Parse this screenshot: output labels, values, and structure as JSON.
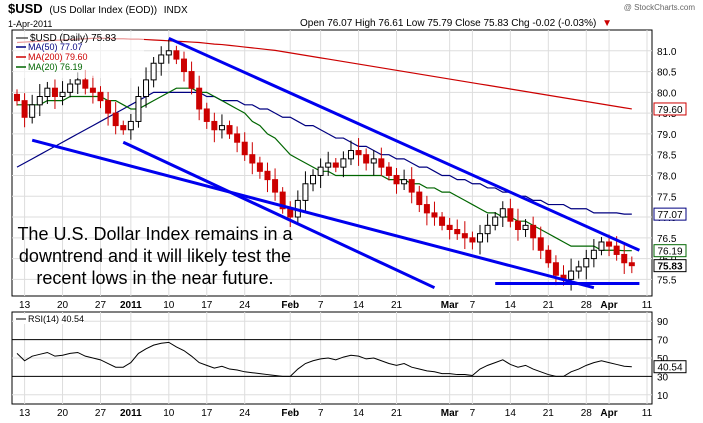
{
  "header": {
    "symbol": "$USD",
    "name": "(US Dollar Index (EOD))",
    "exchange": "INDX",
    "date": "1-Apr-2011",
    "watermark": "@ StockCharts.com",
    "quote": "Open 76.07  High 76.61  Low 75.79  Close 75.83  Chg -0.02 (-0.03%)",
    "quote_arrow": "▼"
  },
  "legend": {
    "main": "$USD (Daily) 75.83",
    "ma50": "MA(50) 77.07",
    "ma200": "MA(200) 79.60",
    "ma20": "MA(20) 76.19"
  },
  "annotation": [
    "The U.S. Dollar Index remains in a",
    "downtrend and it will likely test the",
    "recent lows in the near future."
  ],
  "rsi_label": "RSI(14) 40.54",
  "price_badges": [
    {
      "text": "79.60",
      "value": 79.6,
      "border": "#cc0000"
    },
    {
      "text": "77.07",
      "value": 77.07,
      "border": "#000080"
    },
    {
      "text": "76.19",
      "value": 76.19,
      "border": "#006600"
    },
    {
      "text": "75.83",
      "value": 75.83,
      "border": "#000000",
      "bold": true
    }
  ],
  "rsi_badge": {
    "text": "40.54",
    "value": 40.54
  },
  "colors": {
    "up": "#000000",
    "down": "#cc0000",
    "ma50": "#000080",
    "ma200": "#cc0000",
    "ma20": "#006600",
    "trendline": "#0000ee",
    "rsi": "#000000"
  },
  "chart_data": [
    {
      "type": "candlestick",
      "title": "$USD (Daily) 75.83",
      "ylim": [
        75.1,
        81.5
      ],
      "yticks": [
        75.5,
        76.0,
        76.5,
        77.0,
        77.5,
        78.0,
        78.5,
        79.0,
        79.5,
        80.0,
        80.5,
        81.0
      ],
      "ytick_labels": [
        "75.5",
        "76.0",
        "76.5",
        "77.0",
        "77.5",
        "78.0",
        "78.5",
        "79.0",
        "79.5",
        "80.0",
        "80.5",
        "81.0"
      ],
      "xlim": [
        0,
        83
      ],
      "xticks": [
        {
          "i": 1,
          "label": "13"
        },
        {
          "i": 6,
          "label": "20"
        },
        {
          "i": 11,
          "label": "27"
        },
        {
          "i": 15,
          "label": "2011"
        },
        {
          "i": 20,
          "label": "10"
        },
        {
          "i": 25,
          "label": "17"
        },
        {
          "i": 30,
          "label": "24"
        },
        {
          "i": 36,
          "label": "Feb"
        },
        {
          "i": 40,
          "label": "7"
        },
        {
          "i": 45,
          "label": "14"
        },
        {
          "i": 50,
          "label": "21"
        },
        {
          "i": 57,
          "label": "Mar"
        },
        {
          "i": 60,
          "label": "7"
        },
        {
          "i": 65,
          "label": "14"
        },
        {
          "i": 70,
          "label": "21"
        },
        {
          "i": 75,
          "label": "28"
        },
        {
          "i": 78,
          "label": "Apr"
        },
        {
          "i": 83,
          "label": "11"
        }
      ],
      "grid": true,
      "close": [
        79.8,
        79.4,
        79.7,
        79.9,
        80.1,
        79.9,
        80.0,
        80.2,
        80.3,
        80.1,
        80.0,
        79.8,
        79.5,
        79.2,
        79.1,
        79.3,
        79.9,
        80.3,
        80.7,
        80.9,
        81.0,
        80.8,
        80.5,
        80.1,
        79.6,
        79.3,
        79.1,
        79.2,
        79.0,
        78.8,
        78.5,
        78.3,
        78.1,
        77.9,
        77.6,
        77.2,
        77.0,
        77.4,
        77.8,
        78.0,
        78.2,
        78.3,
        78.2,
        78.4,
        78.6,
        78.5,
        78.3,
        78.4,
        78.2,
        78.0,
        77.8,
        77.9,
        77.6,
        77.3,
        77.1,
        77.0,
        76.8,
        76.7,
        76.6,
        76.5,
        76.4,
        76.6,
        76.8,
        77.0,
        77.2,
        76.9,
        76.7,
        76.8,
        76.5,
        76.2,
        75.9,
        75.6,
        75.5,
        75.7,
        75.8,
        76.0,
        76.2,
        76.4,
        76.3,
        76.1,
        75.9,
        75.83
      ],
      "series": [
        {
          "name": "MA(50) 77.07",
          "values": [
            78.2,
            78.3,
            78.4,
            78.5,
            78.6,
            78.7,
            78.8,
            78.9,
            79.0,
            79.1,
            79.2,
            79.3,
            79.4,
            79.5,
            79.6,
            79.7,
            79.8,
            79.9,
            80.0,
            80.0,
            80.0,
            80.0,
            80.0,
            80.0,
            80.0,
            79.9,
            79.9,
            79.8,
            79.8,
            79.8,
            79.7,
            79.7,
            79.6,
            79.6,
            79.5,
            79.4,
            79.4,
            79.3,
            79.2,
            79.2,
            79.1,
            79.0,
            78.9,
            78.9,
            78.8,
            78.7,
            78.7,
            78.6,
            78.5,
            78.5,
            78.4,
            78.4,
            78.3,
            78.2,
            78.2,
            78.1,
            78.0,
            78.0,
            77.9,
            77.9,
            77.8,
            77.8,
            77.7,
            77.7,
            77.6,
            77.6,
            77.5,
            77.5,
            77.4,
            77.4,
            77.3,
            77.3,
            77.3,
            77.2,
            77.2,
            77.2,
            77.1,
            77.1,
            77.1,
            77.1,
            77.07,
            77.07
          ]
        },
        {
          "name": "MA(200) 79.60",
          "values": [
            81.2,
            81.21,
            81.22,
            81.23,
            81.24,
            81.25,
            81.26,
            81.27,
            81.28,
            81.29,
            81.3,
            81.3,
            81.3,
            81.29,
            81.29,
            81.28,
            81.28,
            81.27,
            81.26,
            81.25,
            81.24,
            81.23,
            81.22,
            81.21,
            81.2,
            81.18,
            81.16,
            81.15,
            81.13,
            81.11,
            81.09,
            81.07,
            81.05,
            81.03,
            81.01,
            80.98,
            80.95,
            80.92,
            80.89,
            80.86,
            80.83,
            80.8,
            80.77,
            80.74,
            80.71,
            80.68,
            80.65,
            80.62,
            80.59,
            80.56,
            80.53,
            80.5,
            80.47,
            80.44,
            80.41,
            80.38,
            80.35,
            80.32,
            80.29,
            80.26,
            80.23,
            80.2,
            80.17,
            80.14,
            80.11,
            80.08,
            80.05,
            80.02,
            79.99,
            79.96,
            79.93,
            79.9,
            79.87,
            79.84,
            79.81,
            79.78,
            79.75,
            79.72,
            79.69,
            79.66,
            79.63,
            79.6
          ]
        },
        {
          "name": "MA(20) 76.19",
          "values": [
            79.7,
            79.7,
            79.7,
            79.7,
            79.8,
            79.8,
            79.8,
            79.9,
            79.9,
            79.9,
            79.9,
            79.9,
            79.8,
            79.8,
            79.7,
            79.6,
            79.6,
            79.7,
            79.8,
            79.9,
            80.0,
            80.1,
            80.1,
            80.1,
            80.0,
            80.0,
            79.9,
            79.8,
            79.7,
            79.6,
            79.5,
            79.3,
            79.2,
            79.0,
            78.9,
            78.7,
            78.5,
            78.4,
            78.3,
            78.2,
            78.1,
            78.1,
            78.0,
            78.0,
            78.0,
            78.0,
            78.0,
            78.0,
            78.0,
            77.9,
            77.9,
            77.9,
            77.8,
            77.8,
            77.7,
            77.7,
            77.6,
            77.6,
            77.5,
            77.4,
            77.3,
            77.2,
            77.1,
            77.1,
            77.0,
            77.0,
            76.9,
            76.9,
            76.8,
            76.7,
            76.6,
            76.5,
            76.4,
            76.3,
            76.3,
            76.3,
            76.3,
            76.2,
            76.2,
            76.2,
            76.19,
            76.19
          ]
        }
      ],
      "trendlines": [
        {
          "from": [
            20,
            81.3
          ],
          "to": [
            82,
            76.2
          ]
        },
        {
          "from": [
            2,
            78.85
          ],
          "to": [
            76,
            75.3
          ]
        },
        {
          "from": [
            14,
            78.8
          ],
          "to": [
            55,
            75.3
          ]
        },
        {
          "from": [
            63,
            75.4
          ],
          "to": [
            82,
            75.4
          ]
        }
      ]
    },
    {
      "type": "line",
      "title": "RSI(14) 40.54",
      "ylim": [
        0,
        100
      ],
      "yticks": [
        10,
        30,
        50,
        70,
        90
      ],
      "ytick_labels": [
        "10",
        "30",
        "50",
        "70",
        "90"
      ],
      "reference_lines": [
        30,
        70
      ],
      "series": [
        {
          "name": "RSI(14) 40.54",
          "values": [
            55,
            47,
            52,
            54,
            56,
            52,
            53,
            55,
            56,
            52,
            50,
            48,
            44,
            40,
            40,
            45,
            55,
            60,
            64,
            66,
            67,
            62,
            58,
            52,
            45,
            42,
            39,
            41,
            38,
            37,
            35,
            34,
            33,
            32,
            31,
            30,
            30,
            38,
            44,
            47,
            49,
            50,
            48,
            51,
            53,
            52,
            49,
            50,
            47,
            44,
            42,
            44,
            40,
            38,
            36,
            35,
            33,
            33,
            32,
            32,
            31,
            38,
            42,
            45,
            48,
            43,
            40,
            42,
            38,
            35,
            32,
            30,
            30,
            35,
            38,
            42,
            45,
            47,
            45,
            43,
            41,
            40.54
          ]
        }
      ]
    }
  ]
}
